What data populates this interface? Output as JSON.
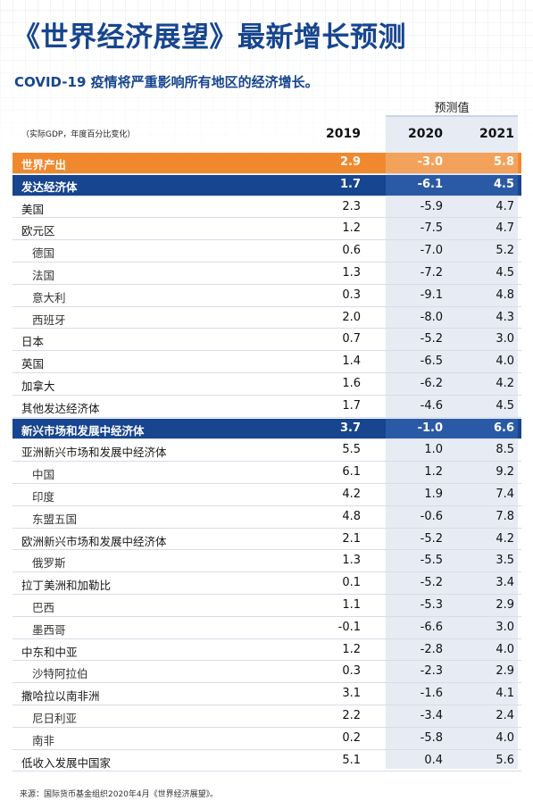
{
  "title": "《世界经济展望》最新增长预测",
  "subtitle": "COVID-19 疫情将严重影响所有地区的经济增长。",
  "forecast_label": "预测值",
  "unit_label": "（实际GDP，年度百分比变化）",
  "source": "来源：国际货币基金组织2020年4月《世界经济展望》。",
  "chart_data": {
    "type": "table",
    "columns": [
      "2019",
      "2020",
      "2021"
    ],
    "rows": [
      {
        "label": "世界产出",
        "values": [
          "2.9",
          "-3.0",
          "5.8"
        ],
        "style": "orange",
        "indent": false
      },
      {
        "label": "发达经济体",
        "values": [
          "1.7",
          "-6.1",
          "4.5"
        ],
        "style": "blue",
        "indent": false
      },
      {
        "label": "美国",
        "values": [
          "2.3",
          "-5.9",
          "4.7"
        ],
        "style": "",
        "indent": false
      },
      {
        "label": "欧元区",
        "values": [
          "1.2",
          "-7.5",
          "4.7"
        ],
        "style": "",
        "indent": false
      },
      {
        "label": "德国",
        "values": [
          "0.6",
          "-7.0",
          "5.2"
        ],
        "style": "",
        "indent": true
      },
      {
        "label": "法国",
        "values": [
          "1.3",
          "-7.2",
          "4.5"
        ],
        "style": "",
        "indent": true
      },
      {
        "label": "意大利",
        "values": [
          "0.3",
          "-9.1",
          "4.8"
        ],
        "style": "",
        "indent": true
      },
      {
        "label": "西班牙",
        "values": [
          "2.0",
          "-8.0",
          "4.3"
        ],
        "style": "",
        "indent": true
      },
      {
        "label": "日本",
        "values": [
          "0.7",
          "-5.2",
          "3.0"
        ],
        "style": "",
        "indent": false
      },
      {
        "label": "英国",
        "values": [
          "1.4",
          "-6.5",
          "4.0"
        ],
        "style": "",
        "indent": false
      },
      {
        "label": "加拿大",
        "values": [
          "1.6",
          "-6.2",
          "4.2"
        ],
        "style": "",
        "indent": false
      },
      {
        "label": "其他发达经济体",
        "values": [
          "1.7",
          "-4.6",
          "4.5"
        ],
        "style": "",
        "indent": false
      },
      {
        "label": "新兴市场和发展中经济体",
        "values": [
          "3.7",
          "-1.0",
          "6.6"
        ],
        "style": "blue",
        "indent": false
      },
      {
        "label": "亚洲新兴市场和发展中经济体",
        "values": [
          "5.5",
          "1.0",
          "8.5"
        ],
        "style": "",
        "indent": false
      },
      {
        "label": "中国",
        "values": [
          "6.1",
          "1.2",
          "9.2"
        ],
        "style": "",
        "indent": true
      },
      {
        "label": "印度",
        "values": [
          "4.2",
          "1.9",
          "7.4"
        ],
        "style": "",
        "indent": true
      },
      {
        "label": "东盟五国",
        "values": [
          "4.8",
          "-0.6",
          "7.8"
        ],
        "style": "",
        "indent": true
      },
      {
        "label": "欧洲新兴市场和发展中经济体",
        "values": [
          "2.1",
          "-5.2",
          "4.2"
        ],
        "style": "",
        "indent": false
      },
      {
        "label": "俄罗斯",
        "values": [
          "1.3",
          "-5.5",
          "3.5"
        ],
        "style": "",
        "indent": true
      },
      {
        "label": "拉丁美洲和加勒比",
        "values": [
          "0.1",
          "-5.2",
          "3.4"
        ],
        "style": "",
        "indent": false
      },
      {
        "label": "巴西",
        "values": [
          "1.1",
          "-5.3",
          "2.9"
        ],
        "style": "",
        "indent": true
      },
      {
        "label": "墨西哥",
        "values": [
          "-0.1",
          "-6.6",
          "3.0"
        ],
        "style": "",
        "indent": true
      },
      {
        "label": "中东和中亚",
        "values": [
          "1.2",
          "-2.8",
          "4.0"
        ],
        "style": "",
        "indent": false
      },
      {
        "label": "沙特阿拉伯",
        "values": [
          "0.3",
          "-2.3",
          "2.9"
        ],
        "style": "",
        "indent": true
      },
      {
        "label": "撒哈拉以南非洲",
        "values": [
          "3.1",
          "-1.6",
          "4.1"
        ],
        "style": "",
        "indent": false
      },
      {
        "label": "尼日利亚",
        "values": [
          "2.2",
          "-3.4",
          "2.4"
        ],
        "style": "",
        "indent": true
      },
      {
        "label": "南非",
        "values": [
          "0.2",
          "-5.8",
          "4.0"
        ],
        "style": "",
        "indent": true
      },
      {
        "label": "低收入发展中国家",
        "values": [
          "5.1",
          "0.4",
          "5.6"
        ],
        "style": "",
        "indent": false
      }
    ]
  }
}
